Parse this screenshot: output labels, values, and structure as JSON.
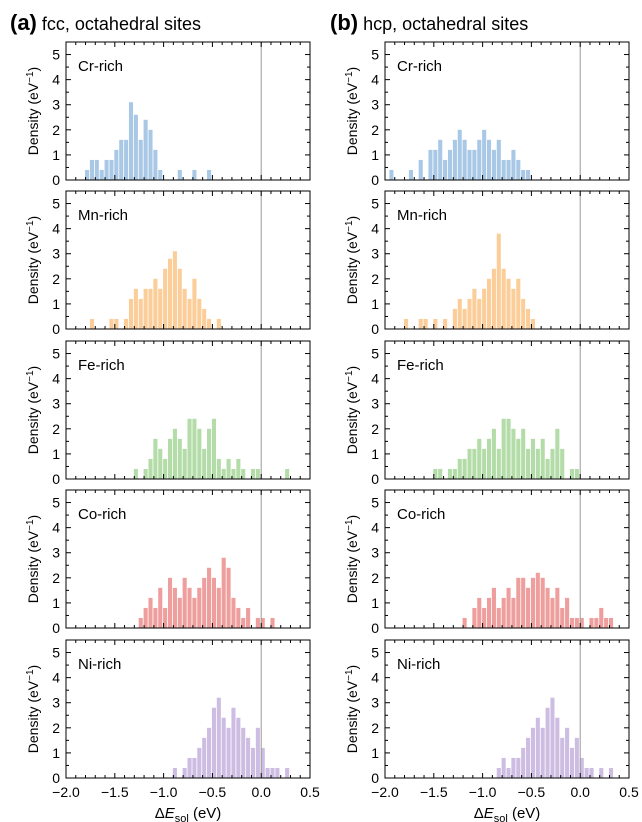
{
  "panels": [
    {
      "letter": "(a)",
      "subtitle": "fcc, octahedral sites"
    },
    {
      "letter": "(b)",
      "subtitle": "hcp, octahedral sites"
    }
  ],
  "colors": {
    "Cr": "#a8c8e6",
    "Mn": "#fbcd99",
    "Fe": "#b3dca8",
    "Co": "#ee9e9c",
    "Ni": "#cdbde3",
    "zero_line": "#9a9a9a",
    "axis": "#000000"
  },
  "chart_data": [
    {
      "type": "bar",
      "panel": "(a)",
      "title": "fcc, octahedral sites",
      "ylabel": "Density (eV⁻¹)",
      "xlabel": "ΔE_sol (eV)",
      "xlim": [
        -2.0,
        0.5
      ],
      "ylim": [
        0,
        5.5
      ],
      "xticks": [
        "−2.0",
        "−1.5",
        "−1.0",
        "−0.5",
        "0.0",
        "0.5"
      ],
      "yticks": [
        "0",
        "1",
        "2",
        "3",
        "4",
        "5"
      ],
      "bin_width": 0.05,
      "vline_x": 0.0,
      "subplots": [
        {
          "label": "Cr-rich",
          "element": "Cr",
          "x": [
            -1.78,
            -1.73,
            -1.68,
            -1.63,
            -1.58,
            -1.53,
            -1.48,
            -1.43,
            -1.38,
            -1.33,
            -1.28,
            -1.23,
            -1.18,
            -1.13,
            -1.08,
            -1.03,
            -0.83,
            -0.68,
            -0.53
          ],
          "values": [
            0.4,
            0.8,
            0.8,
            0.4,
            0.8,
            0.8,
            1.2,
            1.6,
            1.6,
            3.1,
            2.6,
            1.6,
            2.4,
            2.0,
            1.2,
            0.4,
            0.4,
            0.4,
            0.4
          ]
        },
        {
          "label": "Mn-rich",
          "element": "Mn",
          "x": [
            -1.73,
            -1.53,
            -1.48,
            -1.38,
            -1.33,
            -1.28,
            -1.23,
            -1.18,
            -1.13,
            -1.08,
            -1.03,
            -0.98,
            -0.93,
            -0.88,
            -0.83,
            -0.78,
            -0.73,
            -0.68,
            -0.63,
            -0.58,
            -0.53,
            -0.43
          ],
          "values": [
            0.4,
            0.4,
            0.4,
            0.4,
            1.2,
            1.6,
            1.2,
            1.6,
            1.6,
            2.0,
            1.6,
            2.4,
            2.8,
            3.1,
            2.4,
            1.6,
            1.2,
            2.0,
            1.2,
            0.8,
            0.4,
            0.4
          ]
        },
        {
          "label": "Fe-rich",
          "element": "Fe",
          "x": [
            -1.28,
            -1.18,
            -1.13,
            -1.08,
            -1.03,
            -0.98,
            -0.93,
            -0.88,
            -0.83,
            -0.78,
            -0.73,
            -0.68,
            -0.63,
            -0.58,
            -0.53,
            -0.48,
            -0.43,
            -0.38,
            -0.33,
            -0.28,
            -0.23,
            -0.18,
            -0.08,
            -0.03,
            0.27
          ],
          "values": [
            0.4,
            0.4,
            0.8,
            1.6,
            1.2,
            0.8,
            1.6,
            2.0,
            1.6,
            1.2,
            2.4,
            2.4,
            2.0,
            1.2,
            2.0,
            2.4,
            0.8,
            0.4,
            0.8,
            0.4,
            0.8,
            0.4,
            0.4,
            0.4,
            0.4
          ]
        },
        {
          "label": "Co-rich",
          "element": "Co",
          "x": [
            -1.23,
            -1.18,
            -1.13,
            -1.08,
            -1.03,
            -0.98,
            -0.93,
            -0.88,
            -0.83,
            -0.78,
            -0.73,
            -0.68,
            -0.63,
            -0.58,
            -0.53,
            -0.48,
            -0.43,
            -0.38,
            -0.33,
            -0.28,
            -0.23,
            -0.18,
            -0.13,
            -0.03,
            0.02,
            0.12
          ],
          "values": [
            0.4,
            0.8,
            1.2,
            0.8,
            1.6,
            0.8,
            2.0,
            1.6,
            1.2,
            2.0,
            1.6,
            1.2,
            1.6,
            2.0,
            2.4,
            2.0,
            1.6,
            2.8,
            2.4,
            1.2,
            0.8,
            0.4,
            0.8,
            0.4,
            0.4,
            0.4
          ]
        },
        {
          "label": "Ni-rich",
          "element": "Ni",
          "x": [
            -0.88,
            -0.78,
            -0.73,
            -0.68,
            -0.63,
            -0.58,
            -0.53,
            -0.48,
            -0.43,
            -0.38,
            -0.33,
            -0.28,
            -0.23,
            -0.18,
            -0.13,
            -0.08,
            -0.03,
            0.02,
            0.07,
            0.12,
            0.17,
            0.27
          ],
          "values": [
            0.4,
            0.4,
            0.8,
            0.8,
            1.2,
            1.6,
            2.0,
            2.8,
            3.2,
            2.4,
            2.0,
            2.8,
            2.4,
            2.0,
            1.6,
            1.2,
            2.0,
            1.2,
            0.4,
            0.4,
            0.4,
            0.4
          ]
        }
      ]
    },
    {
      "type": "bar",
      "panel": "(b)",
      "title": "hcp, octahedral sites",
      "ylabel": "Density (eV⁻¹)",
      "xlabel": "ΔE_sol (eV)",
      "xlim": [
        -2.0,
        0.5
      ],
      "ylim": [
        0,
        5.5
      ],
      "xticks": [
        "−2.0",
        "−1.5",
        "−1.0",
        "−0.5",
        "0.0",
        "0.5"
      ],
      "yticks": [
        "0",
        "1",
        "2",
        "3",
        "4",
        "5"
      ],
      "bin_width": 0.05,
      "vline_x": 0.0,
      "subplots": [
        {
          "label": "Cr-rich",
          "element": "Cr",
          "x": [
            -1.93,
            -1.73,
            -1.63,
            -1.53,
            -1.48,
            -1.43,
            -1.38,
            -1.33,
            -1.28,
            -1.23,
            -1.18,
            -1.13,
            -1.08,
            -1.03,
            -0.98,
            -0.93,
            -0.88,
            -0.83,
            -0.78,
            -0.73,
            -0.68,
            -0.63,
            -0.58,
            -0.53
          ],
          "values": [
            0.4,
            0.4,
            0.8,
            1.2,
            1.2,
            1.6,
            0.8,
            1.2,
            1.6,
            2.0,
            1.6,
            1.2,
            1.2,
            1.6,
            2.0,
            1.6,
            1.2,
            1.6,
            0.8,
            0.8,
            1.2,
            0.8,
            0.4,
            0.4
          ]
        },
        {
          "label": "Mn-rich",
          "element": "Mn",
          "x": [
            -1.78,
            -1.63,
            -1.58,
            -1.48,
            -1.38,
            -1.28,
            -1.23,
            -1.18,
            -1.13,
            -1.08,
            -1.03,
            -0.98,
            -0.93,
            -0.88,
            -0.83,
            -0.78,
            -0.73,
            -0.68,
            -0.63,
            -0.58,
            -0.53,
            -0.48
          ],
          "values": [
            0.4,
            0.4,
            0.4,
            0.4,
            0.4,
            0.8,
            1.2,
            0.8,
            1.2,
            1.6,
            1.2,
            1.6,
            2.0,
            2.4,
            3.8,
            2.4,
            2.0,
            1.6,
            2.0,
            1.2,
            0.8,
            0.4
          ]
        },
        {
          "label": "Fe-rich",
          "element": "Fe",
          "x": [
            -1.48,
            -1.43,
            -1.33,
            -1.28,
            -1.23,
            -1.18,
            -1.13,
            -1.08,
            -1.03,
            -0.98,
            -0.93,
            -0.88,
            -0.83,
            -0.78,
            -0.73,
            -0.68,
            -0.63,
            -0.58,
            -0.53,
            -0.48,
            -0.43,
            -0.38,
            -0.33,
            -0.28,
            -0.23,
            -0.18,
            -0.08,
            -0.03
          ],
          "values": [
            0.4,
            0.4,
            0.4,
            0.4,
            0.8,
            0.8,
            1.2,
            1.2,
            1.6,
            1.2,
            1.6,
            2.0,
            1.2,
            2.4,
            2.4,
            2.0,
            1.6,
            2.0,
            1.2,
            1.6,
            1.2,
            1.6,
            0.8,
            1.2,
            2.0,
            1.2,
            0.4,
            0.4
          ]
        },
        {
          "label": "Co-rich",
          "element": "Co",
          "x": [
            -1.18,
            -1.08,
            -1.03,
            -0.98,
            -0.93,
            -0.88,
            -0.83,
            -0.78,
            -0.73,
            -0.68,
            -0.63,
            -0.58,
            -0.53,
            -0.48,
            -0.43,
            -0.38,
            -0.33,
            -0.28,
            -0.23,
            -0.18,
            -0.13,
            -0.08,
            -0.03,
            0.02,
            0.12,
            0.17,
            0.22,
            0.27,
            0.32
          ],
          "values": [
            0.4,
            0.8,
            1.2,
            0.8,
            1.2,
            1.6,
            0.8,
            1.2,
            1.6,
            1.2,
            2.0,
            2.0,
            1.6,
            2.0,
            2.2,
            2.0,
            1.6,
            1.2,
            1.6,
            0.8,
            1.2,
            0.4,
            0.4,
            0.4,
            0.4,
            0.4,
            0.8,
            0.4,
            0.4
          ]
        },
        {
          "label": "Ni-rich",
          "element": "Ni",
          "x": [
            -0.83,
            -0.78,
            -0.73,
            -0.68,
            -0.63,
            -0.58,
            -0.53,
            -0.48,
            -0.43,
            -0.38,
            -0.33,
            -0.28,
            -0.23,
            -0.18,
            -0.13,
            -0.08,
            -0.03,
            0.02,
            0.07,
            0.12,
            0.22,
            0.32
          ],
          "values": [
            0.4,
            0.8,
            0.4,
            0.8,
            0.8,
            1.2,
            1.6,
            2.0,
            2.4,
            2.0,
            2.8,
            3.2,
            2.4,
            1.6,
            2.0,
            1.2,
            1.6,
            0.8,
            0.4,
            0.4,
            0.4,
            0.4
          ]
        }
      ]
    }
  ]
}
